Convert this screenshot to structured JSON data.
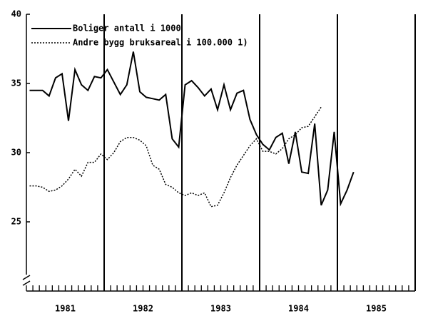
{
  "chart_data": {
    "type": "line",
    "categories": [
      null,
      null,
      null,
      null,
      null,
      null,
      null,
      null,
      null,
      null,
      null,
      null,
      null,
      null,
      null,
      null,
      null,
      null,
      null,
      null,
      null,
      null,
      null,
      null,
      null,
      null,
      null,
      null,
      null,
      null,
      null,
      null,
      null,
      null,
      null,
      null,
      null,
      null,
      null,
      null,
      null,
      null,
      null,
      null,
      null,
      null,
      null,
      null,
      null,
      null,
      null,
      null,
      null,
      null,
      null,
      null,
      null,
      null,
      null,
      null
    ],
    "year_labels": [
      "1981",
      "1982",
      "1983",
      "1984",
      "1985"
    ],
    "series": [
      {
        "name": "Boliger antall i 1000",
        "color": "#000000",
        "dash": "solid",
        "values": [
          34.5,
          34.5,
          34.5,
          34.1,
          35.4,
          35.7,
          32.3,
          36.0,
          34.9,
          34.5,
          35.5,
          35.4,
          36.0,
          35.1,
          34.2,
          34.9,
          37.3,
          34.4,
          34.0,
          33.9,
          33.8,
          34.2,
          31.0,
          30.4,
          34.9,
          35.2,
          34.7,
          34.1,
          34.6,
          33.1,
          34.9,
          33.1,
          34.3,
          34.5,
          32.4,
          31.3,
          30.6,
          30.2,
          31.1,
          31.4,
          29.2,
          31.5,
          28.6,
          28.5,
          32.1,
          26.2,
          27.3,
          31.5,
          26.3,
          27.3,
          28.6,
          null,
          null,
          null,
          null,
          null,
          null,
          null,
          null,
          null
        ]
      },
      {
        "name": "Andre bygg bruksareal i 100.000 1)",
        "color": "#000000",
        "dash": "dotted",
        "values": [
          27.6,
          27.6,
          27.5,
          27.2,
          27.3,
          27.6,
          28.1,
          28.8,
          28.3,
          29.3,
          29.3,
          29.9,
          29.5,
          30.0,
          30.8,
          31.1,
          31.1,
          30.9,
          30.5,
          29.1,
          28.8,
          27.7,
          27.5,
          27.1,
          26.9,
          27.1,
          26.9,
          27.1,
          26.1,
          26.2,
          27.1,
          28.2,
          29.1,
          29.8,
          30.5,
          31.0,
          30.1,
          30.1,
          29.9,
          30.3,
          31.0,
          31.3,
          31.8,
          31.9,
          32.6,
          33.3,
          null,
          null,
          null,
          null,
          null,
          null,
          null,
          null,
          null,
          null,
          null,
          null,
          null,
          null
        ]
      }
    ],
    "ylim": [
      20,
      40
    ],
    "yticks": [
      25,
      30,
      35,
      40
    ],
    "legend": "upper left"
  }
}
